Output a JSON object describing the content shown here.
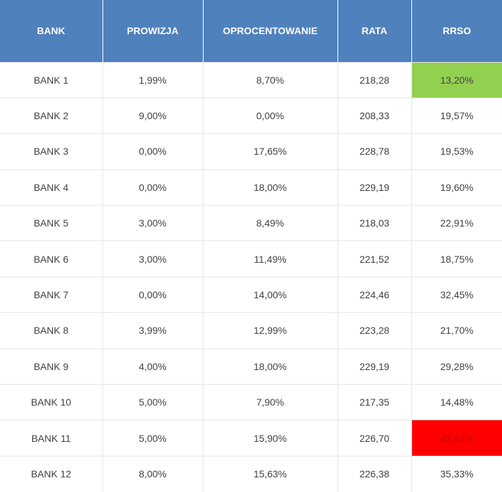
{
  "table": {
    "headers": [
      "BANK",
      "PROWIZJA",
      "OPROCENTOWANIE",
      "RATA",
      "RRSO"
    ],
    "highlight_colors": {
      "best": "#92d050",
      "worst": "#ff0000"
    },
    "rows": [
      {
        "bank": "BANK  1",
        "prowizja": "1,99%",
        "oprocentowanie": "8,70%",
        "rata": "218,28",
        "rrso": "13,20%",
        "highlight": "best"
      },
      {
        "bank": "BANK  2",
        "prowizja": "9,00%",
        "oprocentowanie": "0,00%",
        "rata": "208,33",
        "rrso": "19,57%",
        "highlight": ""
      },
      {
        "bank": "BANK 3",
        "prowizja": "0,00%",
        "oprocentowanie": "17,65%",
        "rata": "228,78",
        "rrso": "19,53%",
        "highlight": ""
      },
      {
        "bank": "BANK 4",
        "prowizja": "0,00%",
        "oprocentowanie": "18,00%",
        "rata": "229,19",
        "rrso": "19,60%",
        "highlight": ""
      },
      {
        "bank": "BANK 5",
        "prowizja": "3,00%",
        "oprocentowanie": "8,49%",
        "rata": "218,03",
        "rrso": "22,91%",
        "highlight": ""
      },
      {
        "bank": "BANK 6",
        "prowizja": "3,00%",
        "oprocentowanie": "11,49%",
        "rata": "221,52",
        "rrso": "18,75%",
        "highlight": ""
      },
      {
        "bank": "BANK 7",
        "prowizja": "0,00%",
        "oprocentowanie": "14,00%",
        "rata": "224,46",
        "rrso": "32,45%",
        "highlight": ""
      },
      {
        "bank": "BANK 8",
        "prowizja": "3,99%",
        "oprocentowanie": "12,99%",
        "rata": "223,28",
        "rrso": "21,70%",
        "highlight": ""
      },
      {
        "bank": "BANK 9",
        "prowizja": "4,00%",
        "oprocentowanie": "18,00%",
        "rata": "229,19",
        "rrso": "29,28%",
        "highlight": ""
      },
      {
        "bank": "BANK 10",
        "prowizja": "5,00%",
        "oprocentowanie": "7,90%",
        "rata": "217,35",
        "rrso": "14,48%",
        "highlight": ""
      },
      {
        "bank": "BANK 11",
        "prowizja": "5,00%",
        "oprocentowanie": "15,90%",
        "rata": "226,70",
        "rrso": "43,42%",
        "highlight": "worst"
      },
      {
        "bank": "BANK 12",
        "prowizja": "8,00%",
        "oprocentowanie": "15,63%",
        "rata": "226,38",
        "rrso": "35,33%",
        "highlight": ""
      }
    ]
  }
}
